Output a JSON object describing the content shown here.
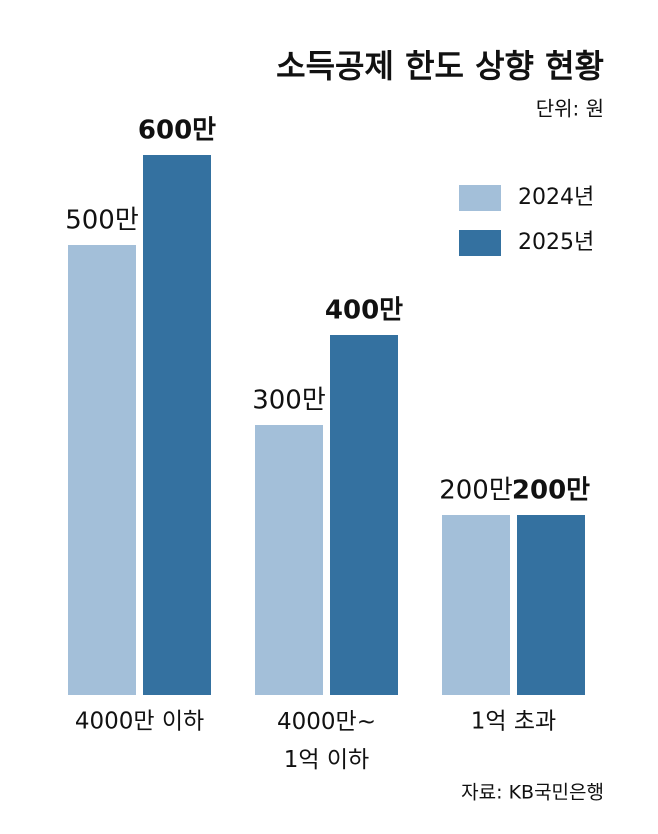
{
  "chart_data": {
    "type": "bar",
    "title": "소득공제 한도 상향 현황",
    "unit": "단위: 원",
    "source": "자료: KB국민은행",
    "categories": [
      "4000만 이하",
      "4000만~\n1억 이하",
      "1억 초과"
    ],
    "series": [
      {
        "name": "2024년",
        "color": "#a3bfd9",
        "values": [
          500,
          300,
          200
        ],
        "value_labels": [
          "500만",
          "300만",
          "200만"
        ]
      },
      {
        "name": "2025년",
        "color": "#3471a0",
        "values": [
          600,
          400,
          200
        ],
        "value_labels": [
          "600만",
          "400만",
          "200만"
        ]
      }
    ],
    "legend": "top-right"
  }
}
